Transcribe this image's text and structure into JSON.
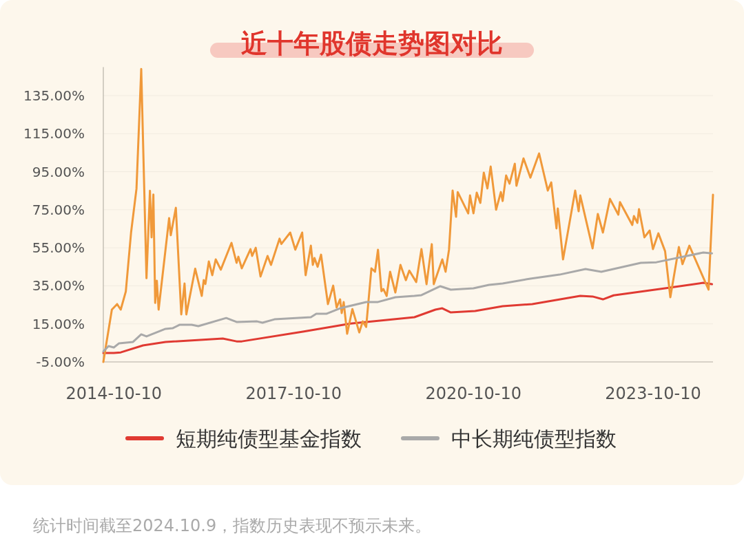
{
  "chart_data": {
    "type": "line",
    "title": "近十年股债走势图对比",
    "xlim": [
      "2014-08-07",
      "2024-10-09"
    ],
    "xticks": [
      "2014-10-10",
      "2017-10-10",
      "2020-10-10",
      "2023-10-10"
    ],
    "ylim": [
      -5,
      150
    ],
    "yticks": [
      {
        "value": -5,
        "label": "-5.00%"
      },
      {
        "value": 15,
        "label": "15.00%"
      },
      {
        "value": 35,
        "label": "35.00%"
      },
      {
        "value": 55,
        "label": "55.00%"
      },
      {
        "value": 75,
        "label": "75.00%"
      },
      {
        "value": 95,
        "label": "95.00%"
      },
      {
        "value": 115,
        "label": "115.00%"
      },
      {
        "value": 135,
        "label": "135.00%"
      }
    ],
    "grid": "y",
    "legend": "bottom",
    "series": [
      {
        "name": "短期纯债型基金指数",
        "color": "#e03a32",
        "x": [
          "2014-08-07",
          "2014-10-10",
          "2014-11-21",
          "2015-04-06",
          "2015-08-21",
          "2016-08-04",
          "2016-10-27",
          "2016-11-28",
          "2017-12-12",
          "2018-09-22",
          "2019-10-16",
          "2020-02-21",
          "2020-04-03",
          "2020-05-25",
          "2020-10-20",
          "2021-04-06",
          "2021-10-03",
          "2022-07-23",
          "2022-10-06",
          "2022-12-08",
          "2023-02-11",
          "2024-01-13",
          "2024-08-11",
          "2024-10-03"
        ],
        "values": [
          -0.3,
          -0.3,
          0,
          3.7,
          5.5,
          7.3,
          5.8,
          5.8,
          11,
          15.2,
          18.5,
          22.5,
          23.2,
          21,
          21.8,
          24.3,
          25.4,
          29.7,
          29.4,
          27.9,
          30,
          34,
          36.6,
          35.9
        ]
      },
      {
        "color": "#f0993a",
        "x": [
          "2014-08-07",
          "2014-09-28",
          "2014-10-30",
          "2014-11-21",
          "2014-12-22",
          "2015-01-23",
          "2015-02-25",
          "2015-03-26",
          "2015-04-27",
          "2015-05-18",
          "2015-05-28",
          "2015-06-08",
          "2015-06-19",
          "2015-06-29",
          "2015-07-10",
          "2015-09-12",
          "2015-09-22",
          "2015-10-23",
          "2015-11-25",
          "2015-12-15",
          "2015-12-26",
          "2016-02-18",
          "2016-03-29",
          "2016-04-10",
          "2016-04-20",
          "2016-05-11",
          "2016-06-01",
          "2016-06-22",
          "2016-07-23",
          "2016-09-26",
          "2016-10-27",
          "2016-11-07",
          "2016-11-28",
          "2017-01-20",
          "2017-01-30",
          "2017-02-21",
          "2017-03-22",
          "2017-05-04",
          "2017-05-25",
          "2017-07-16",
          "2017-07-27",
          "2017-09-19",
          "2017-10-20",
          "2017-12-01",
          "2017-12-22",
          "2018-01-23",
          "2018-02-04",
          "2018-02-14",
          "2018-03-05",
          "2018-03-26",
          "2018-05-07",
          "2018-06-08",
          "2018-06-29",
          "2018-07-20",
          "2018-07-30",
          "2018-08-11",
          "2018-09-01",
          "2018-10-03",
          "2018-11-14",
          "2018-12-05",
          "2018-12-26",
          "2019-01-27",
          "2019-02-18",
          "2019-03-08",
          "2019-03-29",
          "2019-04-10",
          "2019-04-30",
          "2019-05-21",
          "2019-06-22",
          "2019-07-23",
          "2019-08-25",
          "2019-09-15",
          "2019-10-27",
          "2019-11-28",
          "2019-12-29",
          "2020-01-30",
          "2020-02-11",
          "2020-04-03",
          "2020-04-23",
          "2020-05-14",
          "2020-06-05",
          "2020-06-26",
          "2020-07-06",
          "2020-09-08",
          "2020-09-19",
          "2020-10-10",
          "2020-10-30",
          "2020-11-21",
          "2020-12-12",
          "2021-01-03",
          "2021-01-23",
          "2021-02-25",
          "2021-03-26",
          "2021-04-06",
          "2021-04-27",
          "2021-05-18",
          "2021-06-19",
          "2021-06-29",
          "2021-08-11",
          "2021-09-22",
          "2021-11-14",
          "2022-01-06",
          "2022-01-27",
          "2022-02-28",
          "2022-03-08",
          "2022-04-09",
          "2022-06-22",
          "2022-07-13",
          "2022-07-23",
          "2022-10-06",
          "2022-11-07",
          "2022-12-08",
          "2023-01-20",
          "2023-03-12",
          "2023-03-22",
          "2023-06-05",
          "2023-06-15",
          "2023-07-06",
          "2023-07-16",
          "2023-08-18",
          "2023-09-19",
          "2023-10-09",
          "2023-11-11",
          "2023-12-22",
          "2024-01-23",
          "2024-03-15",
          "2024-04-06",
          "2024-05-18",
          "2024-09-12",
          "2024-10-09"
        ],
        "values": [
          -5,
          22.5,
          25.4,
          22.5,
          32,
          63,
          86,
          149,
          39,
          85,
          60.5,
          83,
          26,
          37.7,
          22.5,
          70.6,
          61.6,
          76,
          20,
          36.2,
          20,
          44,
          29.7,
          38,
          36,
          47.8,
          40.6,
          48.9,
          43.5,
          57.6,
          47.1,
          50.3,
          44.2,
          54.3,
          50.7,
          55,
          39.9,
          50.7,
          46,
          59.8,
          57,
          63,
          54,
          63,
          40.6,
          56.1,
          46,
          49.6,
          45,
          51.4,
          25.4,
          35.1,
          23.6,
          27.9,
          20.7,
          26.5,
          9.8,
          22.8,
          10.5,
          16.3,
          13.4,
          44.2,
          42.4,
          54,
          32.2,
          33.3,
          29.7,
          42.4,
          31.5,
          46,
          38,
          43,
          37,
          54.3,
          35.9,
          56.9,
          35.9,
          48.9,
          42.4,
          54,
          85.1,
          71.3,
          84.3,
          73.1,
          82.5,
          73.1,
          84,
          78.6,
          94.5,
          86.2,
          97.7,
          75,
          84.3,
          79.6,
          93,
          88.7,
          99.2,
          87.6,
          102,
          91.9,
          104.6,
          85.1,
          89.4,
          65.2,
          75.7,
          48.9,
          85.1,
          74.2,
          82.5,
          54.7,
          72.8,
          63,
          80.7,
          72.4,
          79,
          67,
          71.7,
          68.1,
          75.3,
          60.5,
          64.1,
          54.3,
          62.6,
          53.2,
          29,
          55.4,
          46.4,
          56.1,
          33,
          82.9
        ]
      },
      {
        "name": "中长期纯债型指数",
        "color": "#a9a9a9",
        "x": [
          "2014-08-07",
          "2014-09-08",
          "2014-10-10",
          "2014-11-11",
          "2015-02-04",
          "2015-03-26",
          "2015-04-27",
          "2015-08-21",
          "2015-10-03",
          "2015-11-14",
          "2016-01-27",
          "2016-03-08",
          "2016-08-25",
          "2016-10-27",
          "2017-03-01",
          "2017-04-03",
          "2017-06-15",
          "2018-01-23",
          "2018-02-25",
          "2018-04-27",
          "2018-07-20",
          "2018-12-26",
          "2019-03-08",
          "2019-06-22",
          "2019-10-16",
          "2019-11-28",
          "2020-03-22",
          "2020-05-25",
          "2020-10-10",
          "2021-01-13",
          "2021-04-06",
          "2021-09-22",
          "2022-03-19",
          "2022-08-24",
          "2022-11-28",
          "2023-07-27",
          "2023-10-30",
          "2024-08-11",
          "2024-10-03"
        ],
        "values": [
          0.5,
          3.3,
          2.6,
          4.8,
          5.5,
          9.5,
          8.4,
          12.4,
          12.7,
          14.5,
          14.5,
          13.8,
          18.1,
          16,
          16.3,
          15.6,
          17.4,
          18.5,
          20.3,
          20.3,
          23.2,
          26.5,
          26.5,
          29,
          29.7,
          30.1,
          34.8,
          33,
          33.7,
          35.5,
          36.2,
          38.8,
          40.9,
          43.8,
          42.4,
          47.1,
          47.4,
          52.5,
          52.1
        ]
      }
    ],
    "annotations": [
      "统计时间截至2024.10.9，指数历史表现不预示未来。"
    ]
  }
}
